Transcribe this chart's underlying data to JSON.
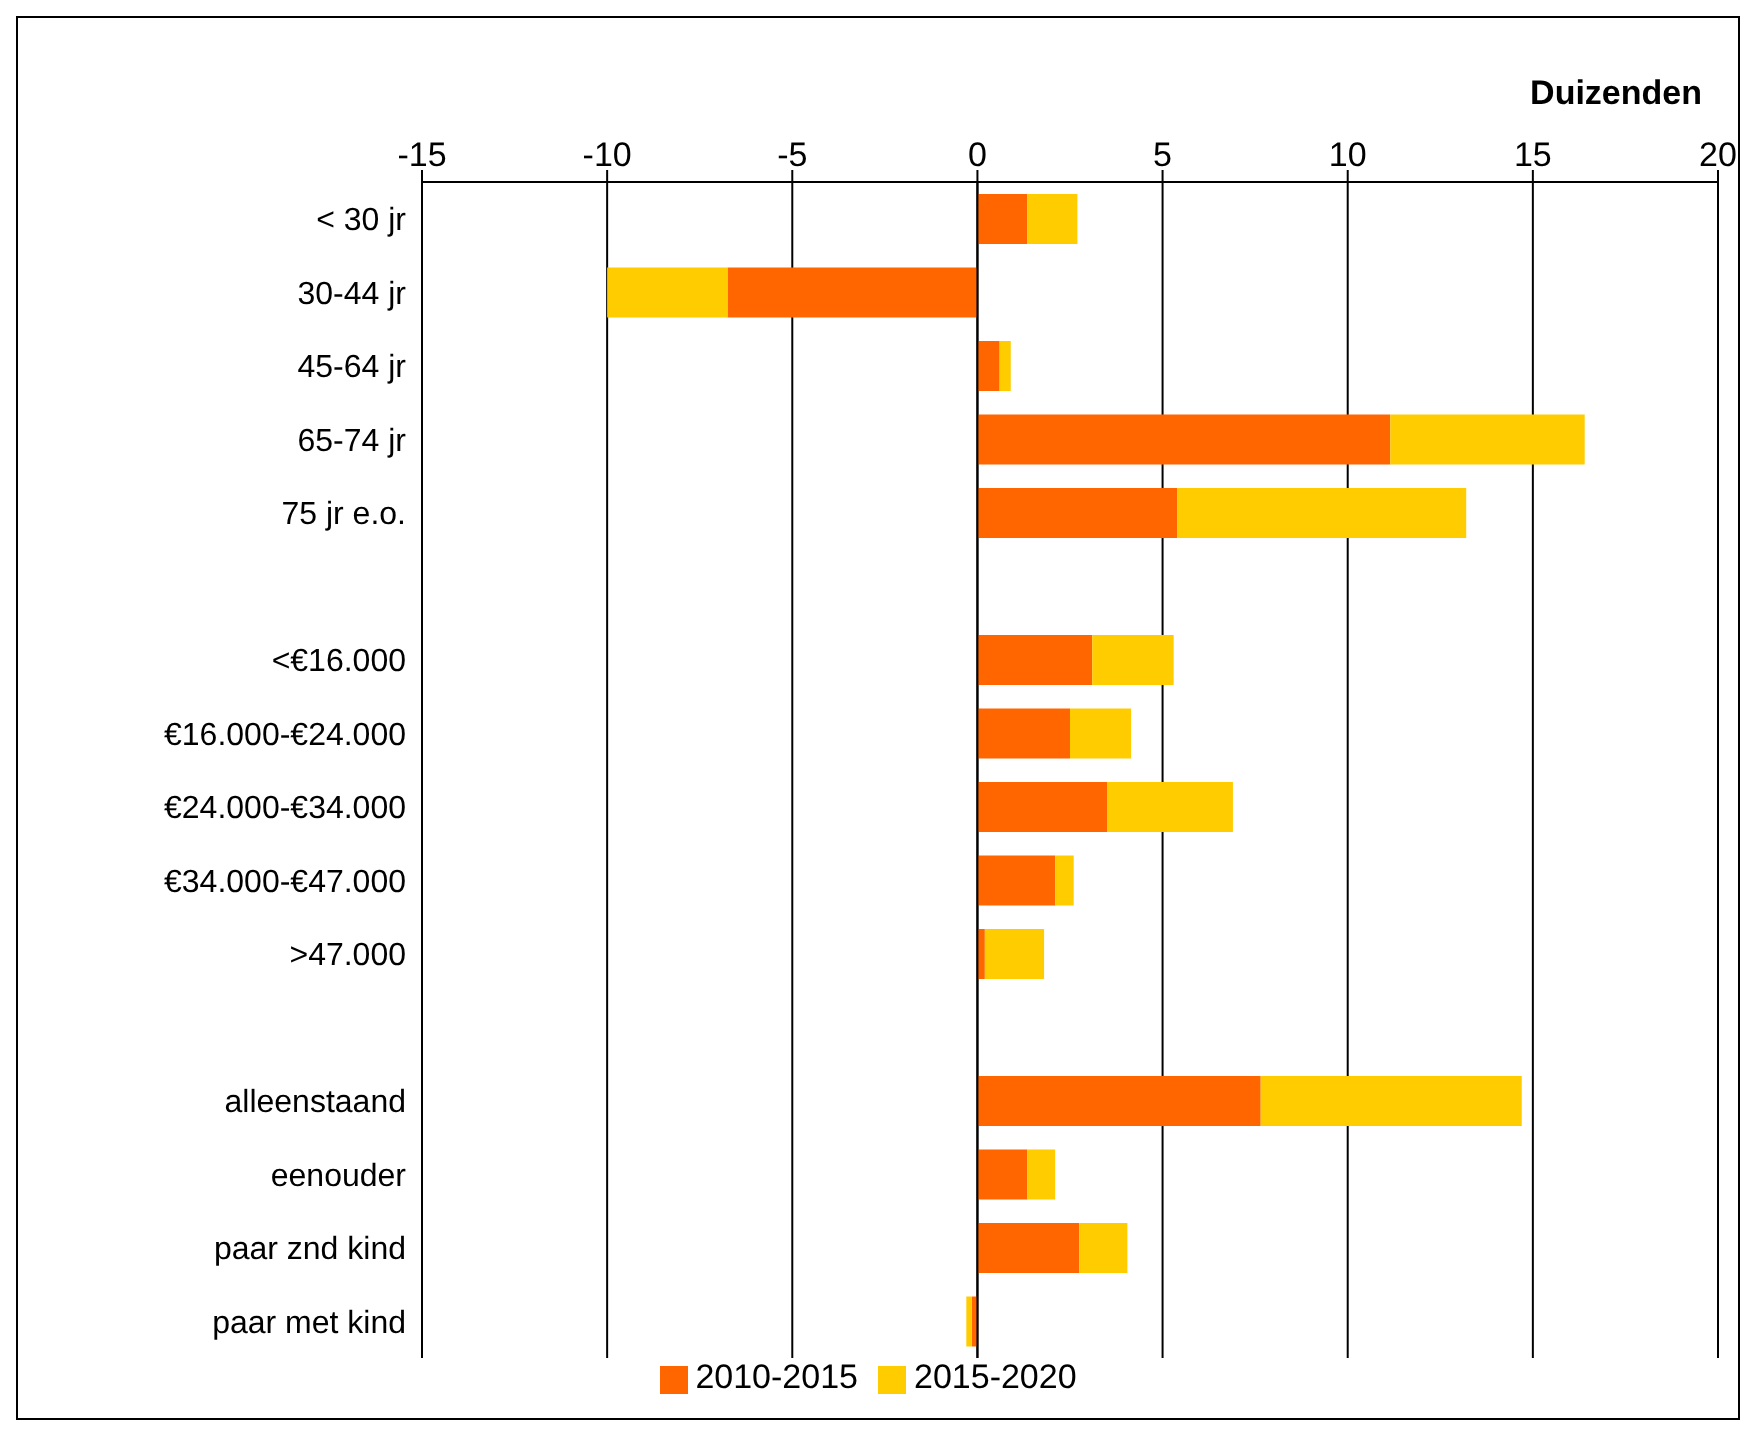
{
  "chart_data": {
    "type": "bar",
    "orientation": "horizontal",
    "stacked": true,
    "xlabel": "Duizenden",
    "categories": [
      "< 30 jr",
      "30-44 jr",
      "45-64 jr",
      "65-74 jr",
      "75 jr e.o.",
      null,
      "<€16.000",
      "€16.000-€24.000",
      "€24.000-€34.000",
      "€34.000-€47.000",
      ">47.000",
      null,
      "alleenstaand",
      "eenouder",
      "paar znd kind",
      "paar met kind"
    ],
    "series": [
      {
        "name": "2010-2015",
        "color": "#ff6600",
        "values": [
          1.35,
          -6.75,
          0.6,
          11.15,
          5.4,
          null,
          3.1,
          2.5,
          3.5,
          2.1,
          0.2,
          null,
          7.65,
          1.35,
          2.75,
          -0.15
        ]
      },
      {
        "name": "2015-2020",
        "color": "#ffcc00",
        "values": [
          1.35,
          -3.25,
          0.3,
          5.25,
          7.8,
          null,
          2.2,
          1.65,
          3.4,
          0.5,
          1.6,
          null,
          7.05,
          0.75,
          1.3,
          -0.15
        ]
      }
    ],
    "xlim": [
      -15,
      20
    ],
    "xticks": [
      -15,
      -10,
      -5,
      0,
      5,
      10,
      15,
      20
    ],
    "grid": "x",
    "legend": "bottom"
  }
}
